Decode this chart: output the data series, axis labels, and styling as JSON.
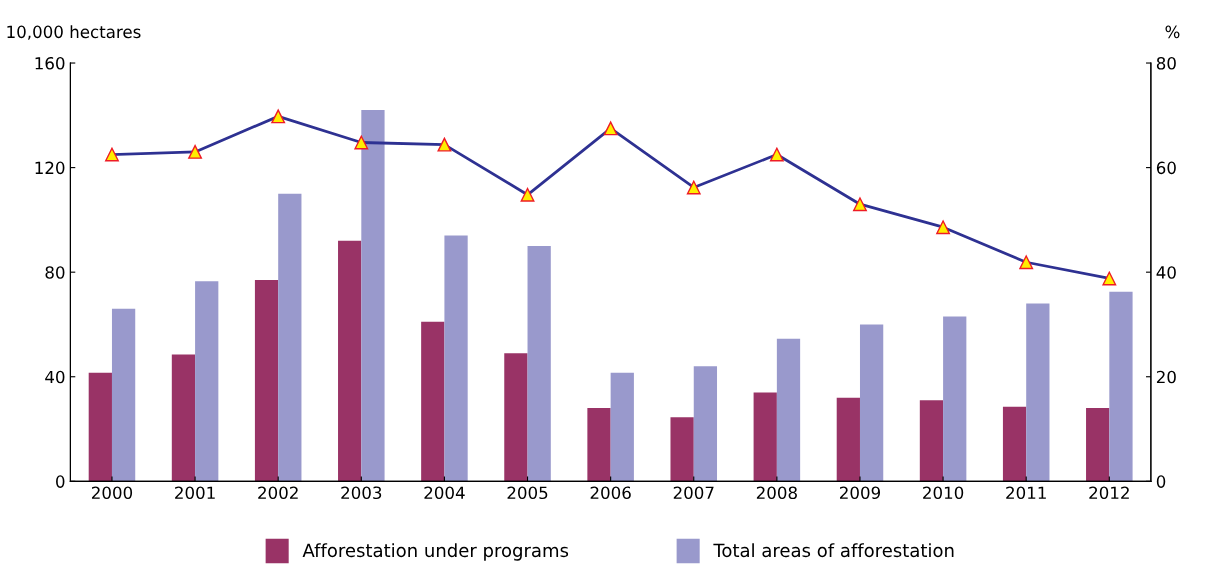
{
  "chart_data": {
    "type": "bar",
    "ylabel": "10,000 hectares",
    "y2label": "%",
    "categories": [
      "2000",
      "2001",
      "2002",
      "2003",
      "2004",
      "2005",
      "2006",
      "2007",
      "2008",
      "2009",
      "2010",
      "2011",
      "2012"
    ],
    "series": [
      {
        "name": "Afforestation under programs",
        "color": "#993366",
        "values": [
          41.5,
          48.5,
          77,
          92,
          61,
          49,
          28,
          24.5,
          34,
          32,
          31,
          28.5,
          28
        ]
      },
      {
        "name": "Total areas of afforestation",
        "color": "#9999cc",
        "values": [
          66,
          76.5,
          110,
          142,
          94,
          90,
          41.5,
          44,
          54.5,
          60,
          63,
          68,
          72.5
        ]
      },
      {
        "type": "line",
        "axis": "y2",
        "color": "#2e3192",
        "marker": "triangle",
        "values": [
          62.5,
          63,
          69.8,
          64.8,
          64.4,
          54.8,
          67.5,
          56.2,
          62.5,
          53,
          48.6,
          41.9,
          38.8
        ]
      }
    ],
    "ylim": [
      0,
      160
    ],
    "yticks": [
      0,
      40,
      80,
      120,
      160
    ],
    "y2lim": [
      0,
      80
    ],
    "y2ticks": [
      0,
      20,
      40,
      60,
      80
    ],
    "grid": false,
    "legend": "bottom"
  }
}
